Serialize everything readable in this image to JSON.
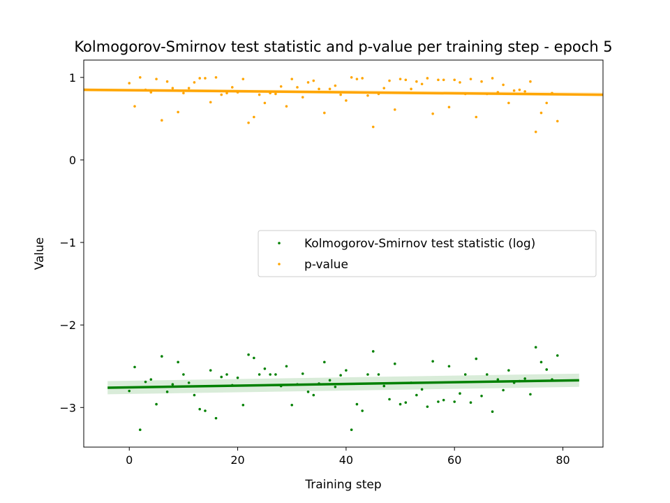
{
  "chart_data": {
    "type": "scatter",
    "title": "Kolmogorov-Smirnov test statistic and p-value per training step - epoch 5",
    "xlabel": "Training step",
    "ylabel": "Value",
    "xlim": [
      -8.4,
      87.4
    ],
    "ylim": [
      -3.48,
      1.21
    ],
    "xticks": [
      0,
      20,
      40,
      60,
      80
    ],
    "yticks": [
      -3,
      -2,
      -1,
      0,
      1
    ],
    "xtick_labels": [
      "0",
      "20",
      "40",
      "60",
      "80"
    ],
    "ytick_labels": [
      "−3",
      "−2",
      "−1",
      "0",
      "1"
    ],
    "grid": false,
    "legend_position": "center-right",
    "series": [
      {
        "name": "Kolmogorov-Smirnov test statistic (log)",
        "color": "#008000",
        "marker": "dot",
        "x": [
          0,
          1,
          2,
          3,
          4,
          5,
          6,
          7,
          8,
          9,
          10,
          11,
          12,
          13,
          14,
          15,
          16,
          17,
          18,
          19,
          20,
          21,
          22,
          23,
          24,
          25,
          26,
          27,
          28,
          29,
          30,
          31,
          32,
          33,
          34,
          35,
          36,
          37,
          38,
          39,
          40,
          41,
          42,
          43,
          44,
          45,
          46,
          47,
          48,
          49,
          50,
          51,
          52,
          53,
          54,
          55,
          56,
          57,
          58,
          59,
          60,
          61,
          62,
          63,
          64,
          65,
          66,
          67,
          68,
          69,
          70,
          71,
          72,
          73,
          74,
          75,
          76,
          77,
          78,
          79
        ],
        "y": [
          -2.8,
          -2.51,
          -3.27,
          -2.69,
          -2.66,
          -2.96,
          -2.38,
          -2.81,
          -2.72,
          -2.45,
          -2.6,
          -2.7,
          -2.85,
          -3.02,
          -3.04,
          -2.55,
          -3.13,
          -2.63,
          -2.6,
          -2.73,
          -2.64,
          -2.97,
          -2.36,
          -2.4,
          -2.6,
          -2.53,
          -2.6,
          -2.6,
          -2.74,
          -2.5,
          -2.97,
          -2.72,
          -2.59,
          -2.81,
          -2.85,
          -2.71,
          -2.45,
          -2.67,
          -2.75,
          -2.61,
          -2.55,
          -3.27,
          -2.96,
          -3.04,
          -2.6,
          -2.32,
          -2.6,
          -2.74,
          -2.9,
          -2.47,
          -2.96,
          -2.94,
          -2.7,
          -2.85,
          -2.78,
          -2.99,
          -2.44,
          -2.93,
          -2.91,
          -2.5,
          -2.93,
          -2.83,
          -2.6,
          -2.94,
          -2.41,
          -2.86,
          -2.6,
          -3.05,
          -2.66,
          -2.79,
          -2.55,
          -2.7,
          -2.68,
          -2.65,
          -2.84,
          -2.27,
          -2.45,
          -2.54,
          -2.66,
          -2.37
        ]
      },
      {
        "name": "p-value",
        "color": "#ffa500",
        "marker": "dot",
        "x": [
          0,
          1,
          2,
          3,
          4,
          5,
          6,
          7,
          8,
          9,
          10,
          11,
          12,
          13,
          14,
          15,
          16,
          17,
          18,
          19,
          20,
          21,
          22,
          23,
          24,
          25,
          26,
          27,
          28,
          29,
          30,
          31,
          32,
          33,
          34,
          35,
          36,
          37,
          38,
          39,
          40,
          41,
          42,
          43,
          44,
          45,
          46,
          47,
          48,
          49,
          50,
          51,
          52,
          53,
          54,
          55,
          56,
          57,
          58,
          59,
          60,
          61,
          62,
          63,
          64,
          65,
          66,
          67,
          68,
          69,
          70,
          71,
          72,
          73,
          74,
          75,
          76,
          77,
          78,
          79
        ],
        "y": [
          0.93,
          0.65,
          1.0,
          0.85,
          0.82,
          0.98,
          0.48,
          0.95,
          0.87,
          0.58,
          0.81,
          0.87,
          0.94,
          0.99,
          0.99,
          0.7,
          1.0,
          0.79,
          0.81,
          0.88,
          0.82,
          0.98,
          0.45,
          0.52,
          0.79,
          0.69,
          0.81,
          0.8,
          0.89,
          0.65,
          0.98,
          0.88,
          0.76,
          0.94,
          0.96,
          0.86,
          0.57,
          0.86,
          0.9,
          0.79,
          0.72,
          1.0,
          0.98,
          0.99,
          0.78,
          0.4,
          0.8,
          0.87,
          0.96,
          0.61,
          0.98,
          0.97,
          0.86,
          0.95,
          0.92,
          0.99,
          0.56,
          0.97,
          0.97,
          0.64,
          0.97,
          0.94,
          0.8,
          0.98,
          0.52,
          0.95,
          0.8,
          0.99,
          0.82,
          0.91,
          0.69,
          0.84,
          0.85,
          0.83,
          0.95,
          0.34,
          0.57,
          0.69,
          0.81,
          0.47
        ]
      }
    ],
    "regression": [
      {
        "series": "Kolmogorov-Smirnov test statistic (log)",
        "color": "#008000",
        "x": [
          -4,
          83
        ],
        "y": [
          -2.76,
          -2.67
        ],
        "ci_start": [
          -2.84,
          -2.68
        ],
        "ci_end": [
          -2.75,
          -2.59
        ]
      },
      {
        "series": "p-value",
        "color": "#ffa500",
        "x": [
          -8.4,
          87.4
        ],
        "y": [
          0.85,
          0.79
        ],
        "ci_start": [
          0.83,
          0.87
        ],
        "ci_end": [
          0.77,
          0.82
        ]
      }
    ]
  }
}
